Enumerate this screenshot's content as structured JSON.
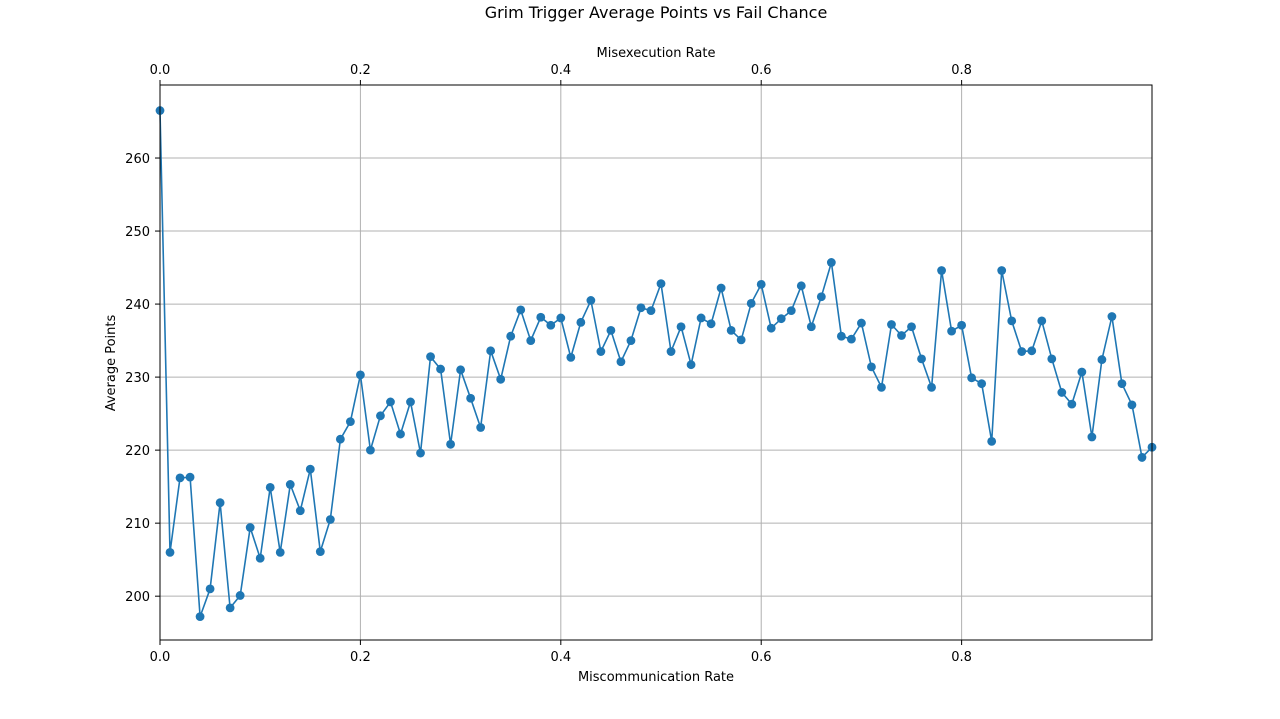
{
  "chart_data": {
    "type": "line",
    "title": "Grim Trigger Average Points vs Fail Chance",
    "xlabel": "Miscommunication Rate",
    "x2label": "Misexecution Rate",
    "ylabel": "Average Points",
    "xlim": [
      0,
      0.99
    ],
    "ylim": [
      194,
      270
    ],
    "xticks": [
      0,
      0.2,
      0.4,
      0.6,
      0.8
    ],
    "xtick_labels": [
      "0.0",
      "0.2",
      "0.4",
      "0.6",
      "0.8"
    ],
    "yticks": [
      200,
      210,
      220,
      230,
      240,
      250,
      260
    ],
    "ytick_labels": [
      "200",
      "210",
      "220",
      "230",
      "240",
      "250",
      "260"
    ],
    "grid": true,
    "marker": "circle",
    "color": "#1f77b4",
    "series": [
      {
        "x": [
          0.0,
          0.01,
          0.02,
          0.03,
          0.04,
          0.05,
          0.06,
          0.07,
          0.08,
          0.09,
          0.1,
          0.11,
          0.12,
          0.13,
          0.14,
          0.15,
          0.16,
          0.17,
          0.18,
          0.19,
          0.2,
          0.21,
          0.22,
          0.23,
          0.24,
          0.25,
          0.26,
          0.27,
          0.28,
          0.29,
          0.3,
          0.31,
          0.32,
          0.33,
          0.34,
          0.35,
          0.36,
          0.37,
          0.38,
          0.39,
          0.4,
          0.41,
          0.42,
          0.43,
          0.44,
          0.45,
          0.46,
          0.47,
          0.48,
          0.49,
          0.5,
          0.51,
          0.52,
          0.53,
          0.54,
          0.55,
          0.56,
          0.57,
          0.58,
          0.59,
          0.6,
          0.61,
          0.62,
          0.63,
          0.64,
          0.65,
          0.66,
          0.67,
          0.68,
          0.69,
          0.7,
          0.71,
          0.72,
          0.73,
          0.74,
          0.75,
          0.76,
          0.77,
          0.78,
          0.79,
          0.8,
          0.81,
          0.82,
          0.83,
          0.84,
          0.85,
          0.86,
          0.87,
          0.88,
          0.89,
          0.9,
          0.91,
          0.92,
          0.93,
          0.94,
          0.95,
          0.96,
          0.97,
          0.98,
          0.99
        ],
        "y": [
          266.5,
          206.0,
          216.2,
          216.3,
          197.2,
          201.0,
          212.8,
          198.4,
          200.1,
          209.4,
          205.2,
          214.9,
          206.0,
          215.3,
          211.7,
          217.4,
          206.1,
          210.5,
          221.5,
          223.9,
          230.3,
          220.0,
          224.7,
          226.6,
          222.2,
          226.6,
          219.6,
          232.8,
          231.1,
          220.8,
          231.0,
          227.1,
          223.1,
          233.6,
          229.7,
          235.6,
          239.2,
          235.0,
          238.2,
          237.1,
          238.1,
          232.7,
          237.5,
          240.5,
          233.5,
          236.4,
          232.1,
          235.0,
          239.5,
          239.1,
          242.8,
          233.5,
          236.9,
          231.7,
          238.1,
          237.3,
          242.2,
          236.4,
          235.1,
          240.1,
          242.7,
          236.7,
          238.0,
          239.1,
          242.5,
          236.9,
          241.0,
          245.7,
          235.6,
          235.2,
          237.4,
          231.4,
          228.6,
          237.2,
          235.7,
          236.9,
          232.5,
          228.6,
          244.6,
          236.3,
          237.1,
          229.9,
          229.1,
          221.2,
          244.6,
          237.7,
          233.5,
          233.6,
          237.7,
          232.5,
          227.9,
          226.3,
          230.7,
          221.8,
          232.4,
          238.3,
          229.1,
          226.2,
          219.0,
          220.4
        ]
      }
    ]
  }
}
